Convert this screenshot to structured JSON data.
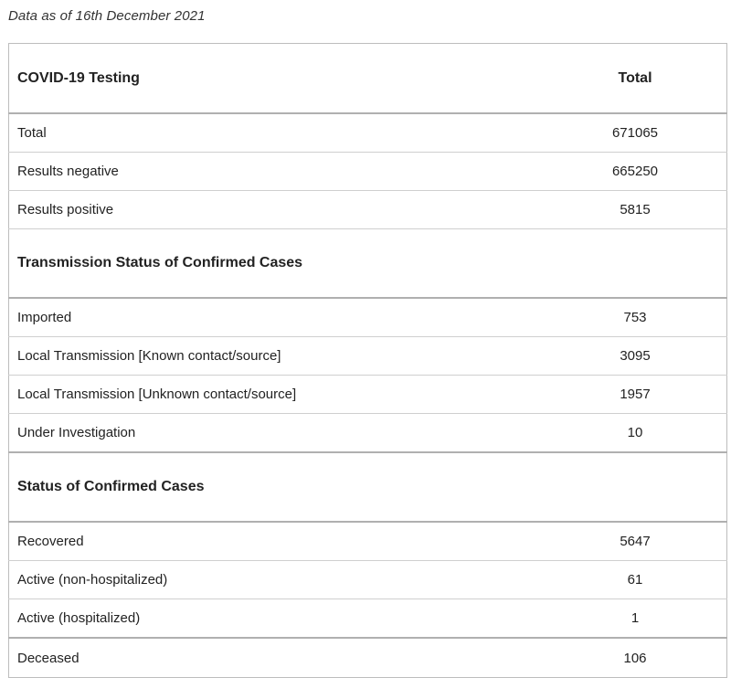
{
  "caption": "Data as of 16th December 2021",
  "table": {
    "header": {
      "label": "COVID-19 Testing",
      "value": "Total"
    },
    "testing": [
      {
        "label": "Total",
        "value": "671065"
      },
      {
        "label": "Results negative",
        "value": "665250"
      },
      {
        "label": "Results positive",
        "value": "5815"
      }
    ],
    "transmission_heading": "Transmission Status of Confirmed Cases",
    "transmission": [
      {
        "label": "Imported",
        "value": "753"
      },
      {
        "label": "Local Transmission [Known contact/source]",
        "value": "3095"
      },
      {
        "label": "Local Transmission [Unknown contact/source]",
        "value": "1957"
      },
      {
        "label": "Under Investigation",
        "value": "10"
      }
    ],
    "status_heading": "Status of Confirmed Cases",
    "status": [
      {
        "label": "Recovered",
        "value": "5647"
      },
      {
        "label": "Active (non-hospitalized)",
        "value": "61"
      },
      {
        "label": "Active (hospitalized)",
        "value": "1"
      },
      {
        "label": "Deceased",
        "value": "106"
      }
    ]
  }
}
